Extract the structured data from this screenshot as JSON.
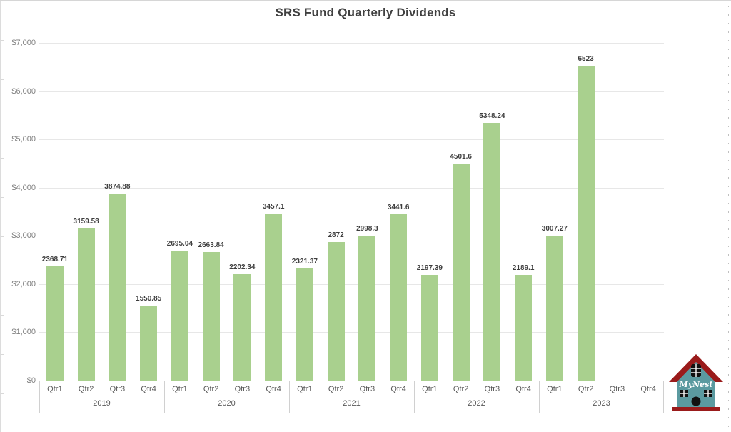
{
  "chart_data": {
    "type": "bar",
    "title": "SRS Fund Quarterly Dividends",
    "xlabel": "",
    "ylabel": "",
    "ylim": [
      0,
      7000
    ],
    "ytick_step": 1000,
    "ytick_labels": [
      "$0",
      "$1,000",
      "$2,000",
      "$3,000",
      "$4,000",
      "$5,000",
      "$6,000",
      "$7,000"
    ],
    "grid": true,
    "legend": false,
    "bar_color": "#a9d08e",
    "quarter_labels": [
      "Qtr1",
      "Qtr2",
      "Qtr3",
      "Qtr4"
    ],
    "groups": [
      {
        "year": "2019",
        "values": [
          2368.71,
          3159.58,
          3874.88,
          1550.85
        ],
        "labels": [
          "2368.71",
          "3159.58",
          "3874.88",
          "1550.85"
        ]
      },
      {
        "year": "2020",
        "values": [
          2695.04,
          2663.84,
          2202.34,
          3457.1
        ],
        "labels": [
          "2695.04",
          "2663.84",
          "2202.34",
          "3457.1"
        ]
      },
      {
        "year": "2021",
        "values": [
          2321.37,
          2872,
          2998.3,
          3441.6
        ],
        "labels": [
          "2321.37",
          "2872",
          "2998.3",
          "3441.6"
        ]
      },
      {
        "year": "2022",
        "values": [
          2197.39,
          4501.6,
          5348.24,
          2189.1
        ],
        "labels": [
          "2197.39",
          "4501.6",
          "5348.24",
          "2189.1"
        ]
      },
      {
        "year": "2023",
        "values": [
          3007.27,
          6523,
          null,
          null
        ],
        "labels": [
          "3007.27",
          "6523",
          "",
          ""
        ]
      }
    ]
  },
  "logo": {
    "text": "MyNest",
    "body_color": "#5b9aa0",
    "roof_color": "#9a1b1b",
    "window_color": "#111111"
  }
}
